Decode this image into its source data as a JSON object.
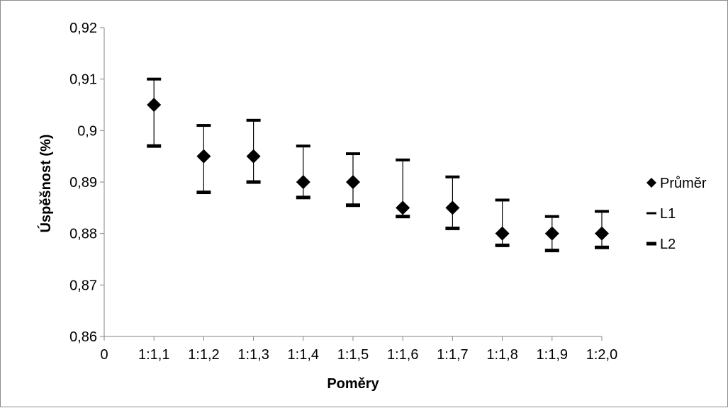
{
  "chart_data": {
    "type": "scatter",
    "title": "",
    "xlabel": "Poměry",
    "ylabel": "Úspěšnost (%)",
    "categories": [
      "0",
      "1:1,1",
      "1:1,2",
      "1:1,3",
      "1:1,4",
      "1:1,5",
      "1:1,6",
      "1:1,7",
      "1:1,8",
      "1:1,9",
      "1:2,0"
    ],
    "ylim": [
      0.86,
      0.92
    ],
    "yticks": [
      0.86,
      0.87,
      0.88,
      0.89,
      0.9,
      0.91,
      0.92
    ],
    "ytick_labels": [
      "0,86",
      "0,87",
      "0,88",
      "0,89",
      "0,9",
      "0,91",
      "0,92"
    ],
    "grid": false,
    "legend_position": "right",
    "series": [
      {
        "name": "Průměr",
        "marker": "diamond",
        "values": [
          null,
          0.905,
          0.895,
          0.895,
          0.89,
          0.89,
          0.885,
          0.885,
          0.88,
          0.88,
          0.88
        ]
      },
      {
        "name": "L1",
        "marker": "dash",
        "values": [
          null,
          0.91,
          0.901,
          0.902,
          0.897,
          0.8955,
          0.8943,
          0.891,
          0.8865,
          0.8833,
          0.8843
        ]
      },
      {
        "name": "L2",
        "marker": "bold-dash",
        "values": [
          null,
          0.897,
          0.888,
          0.89,
          0.887,
          0.8855,
          0.8833,
          0.881,
          0.8777,
          0.8767,
          0.8773
        ]
      }
    ],
    "colors": {
      "marker": "#000000",
      "axis": "#868686",
      "frame": "#8c8c8c"
    }
  }
}
